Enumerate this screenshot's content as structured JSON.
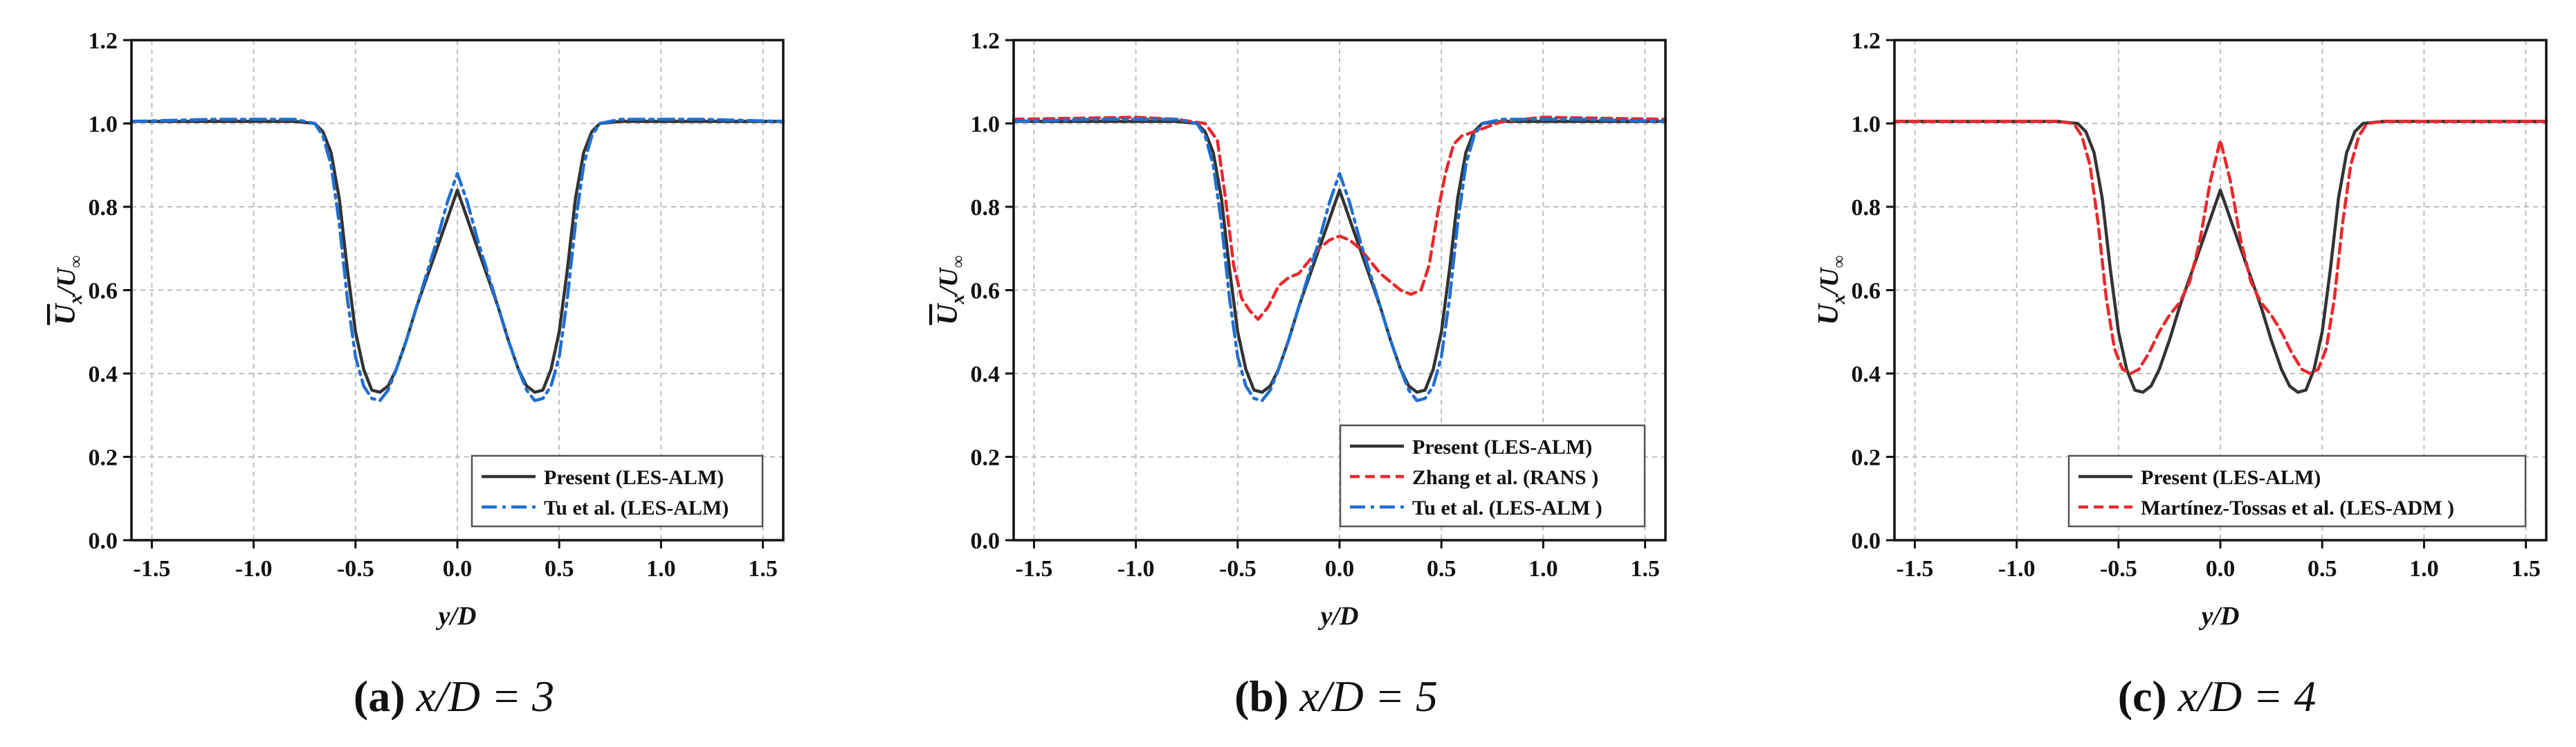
{
  "figure": {
    "panels": [
      {
        "caption": {
          "letter": "(a)",
          "text": " x/D = 3"
        },
        "chart_data": {
          "type": "line",
          "xlabel": "y/D",
          "ylabel": "U_x/U_∞",
          "ylabel_main": "U",
          "ylabel_sub": "x",
          "ylabel_den": "/U",
          "ylabel_den_sub": "∞",
          "ylabel_overline": true,
          "xlim": [
            -1.6,
            1.6
          ],
          "ylim": [
            0.0,
            1.2
          ],
          "xticks": [
            "-1.5",
            "-1.0",
            "-0.5",
            "0.0",
            "0.5",
            "1.0",
            "1.5"
          ],
          "yticks": [
            "0.0",
            "0.2",
            "0.4",
            "0.6",
            "0.8",
            "1.0",
            "1.2"
          ],
          "grid": true,
          "legend_position": "bottom-right",
          "series": [
            {
              "name": "Present (LES-ALM)",
              "color": "#333333",
              "style": "solid",
              "x": [
                -1.6,
                -0.8,
                -0.7,
                -0.66,
                -0.62,
                -0.58,
                -0.54,
                -0.5,
                -0.46,
                -0.42,
                -0.38,
                -0.34,
                -0.3,
                -0.25,
                -0.2,
                -0.15,
                -0.1,
                -0.05,
                0.0,
                0.05,
                0.1,
                0.15,
                0.2,
                0.25,
                0.3,
                0.34,
                0.38,
                0.42,
                0.46,
                0.5,
                0.54,
                0.58,
                0.62,
                0.66,
                0.7,
                0.8,
                1.6
              ],
              "y": [
                1.005,
                1.005,
                1.0,
                0.98,
                0.93,
                0.82,
                0.65,
                0.5,
                0.41,
                0.36,
                0.355,
                0.37,
                0.41,
                0.48,
                0.56,
                0.63,
                0.7,
                0.77,
                0.84,
                0.77,
                0.7,
                0.63,
                0.56,
                0.48,
                0.41,
                0.37,
                0.355,
                0.36,
                0.41,
                0.5,
                0.65,
                0.82,
                0.93,
                0.98,
                1.0,
                1.005,
                1.005
              ]
            },
            {
              "name": "Tu et al. (LES-ALM)",
              "color": "#1f6fd1",
              "style": "dashdot",
              "x": [
                -1.6,
                -1.2,
                -1.0,
                -0.8,
                -0.7,
                -0.66,
                -0.62,
                -0.58,
                -0.54,
                -0.5,
                -0.46,
                -0.42,
                -0.38,
                -0.34,
                -0.3,
                -0.25,
                -0.2,
                -0.15,
                -0.1,
                -0.05,
                0.0,
                0.05,
                0.1,
                0.15,
                0.2,
                0.25,
                0.3,
                0.34,
                0.38,
                0.42,
                0.46,
                0.5,
                0.54,
                0.58,
                0.62,
                0.66,
                0.7,
                0.8,
                1.0,
                1.2,
                1.6
              ],
              "y": [
                1.005,
                1.01,
                1.01,
                1.01,
                1.0,
                0.97,
                0.9,
                0.76,
                0.58,
                0.44,
                0.37,
                0.34,
                0.335,
                0.36,
                0.41,
                0.48,
                0.56,
                0.64,
                0.72,
                0.81,
                0.88,
                0.81,
                0.72,
                0.64,
                0.56,
                0.48,
                0.41,
                0.36,
                0.335,
                0.34,
                0.37,
                0.44,
                0.58,
                0.76,
                0.9,
                0.97,
                1.0,
                1.01,
                1.01,
                1.01,
                1.005
              ]
            }
          ]
        }
      },
      {
        "caption": {
          "letter": "(b)",
          "text": " x/D = 5"
        },
        "chart_data": {
          "type": "line",
          "xlabel": "y/D",
          "ylabel": "U_x/U_∞",
          "ylabel_main": "U",
          "ylabel_sub": "x",
          "ylabel_den": "/U",
          "ylabel_den_sub": "∞",
          "ylabel_overline": true,
          "xlim": [
            -1.6,
            1.6
          ],
          "ylim": [
            0.0,
            1.2
          ],
          "xticks": [
            "-1.5",
            "-1.0",
            "-0.5",
            "0.0",
            "0.5",
            "1.0",
            "1.5"
          ],
          "yticks": [
            "0.0",
            "0.2",
            "0.4",
            "0.6",
            "0.8",
            "1.0",
            "1.2"
          ],
          "grid": true,
          "legend_position": "bottom-right",
          "series": [
            {
              "name": "Present (LES-ALM)",
              "color": "#333333",
              "style": "solid",
              "x": [
                -1.6,
                -0.8,
                -0.7,
                -0.66,
                -0.62,
                -0.58,
                -0.54,
                -0.5,
                -0.46,
                -0.42,
                -0.38,
                -0.34,
                -0.3,
                -0.25,
                -0.2,
                -0.15,
                -0.1,
                -0.05,
                0.0,
                0.05,
                0.1,
                0.15,
                0.2,
                0.25,
                0.3,
                0.34,
                0.38,
                0.42,
                0.46,
                0.5,
                0.54,
                0.58,
                0.62,
                0.66,
                0.7,
                0.8,
                1.6
              ],
              "y": [
                1.005,
                1.005,
                1.0,
                0.98,
                0.93,
                0.82,
                0.65,
                0.5,
                0.41,
                0.36,
                0.355,
                0.37,
                0.41,
                0.48,
                0.56,
                0.63,
                0.7,
                0.77,
                0.84,
                0.77,
                0.7,
                0.63,
                0.56,
                0.48,
                0.41,
                0.37,
                0.355,
                0.36,
                0.41,
                0.5,
                0.65,
                0.82,
                0.93,
                0.98,
                1.0,
                1.005,
                1.005
              ]
            },
            {
              "name": "Zhang et al. (RANS )",
              "color": "#e8292d",
              "style": "dashed",
              "x": [
                -1.6,
                -1.0,
                -0.8,
                -0.66,
                -0.6,
                -0.56,
                -0.52,
                -0.48,
                -0.44,
                -0.4,
                -0.35,
                -0.3,
                -0.25,
                -0.2,
                -0.15,
                -0.1,
                -0.05,
                0.0,
                0.05,
                0.1,
                0.15,
                0.2,
                0.25,
                0.3,
                0.35,
                0.4,
                0.44,
                0.48,
                0.52,
                0.56,
                0.6,
                0.66,
                0.8,
                1.0,
                1.6
              ],
              "y": [
                1.01,
                1.015,
                1.01,
                1.0,
                0.96,
                0.82,
                0.66,
                0.58,
                0.55,
                0.53,
                0.56,
                0.61,
                0.63,
                0.64,
                0.67,
                0.7,
                0.72,
                0.73,
                0.72,
                0.7,
                0.67,
                0.64,
                0.62,
                0.6,
                0.59,
                0.6,
                0.66,
                0.78,
                0.88,
                0.95,
                0.97,
                0.98,
                1.005,
                1.015,
                1.01
              ]
            },
            {
              "name": "Tu et al. (LES-ALM )",
              "color": "#1f6fd1",
              "style": "dashdot",
              "x": [
                -1.6,
                -1.2,
                -1.0,
                -0.8,
                -0.7,
                -0.66,
                -0.62,
                -0.58,
                -0.54,
                -0.5,
                -0.46,
                -0.42,
                -0.38,
                -0.34,
                -0.3,
                -0.25,
                -0.2,
                -0.15,
                -0.1,
                -0.05,
                0.0,
                0.05,
                0.1,
                0.15,
                0.2,
                0.25,
                0.3,
                0.34,
                0.38,
                0.42,
                0.46,
                0.5,
                0.54,
                0.58,
                0.62,
                0.66,
                0.7,
                0.8,
                1.0,
                1.2,
                1.6
              ],
              "y": [
                1.005,
                1.01,
                1.01,
                1.01,
                1.0,
                0.97,
                0.9,
                0.76,
                0.58,
                0.44,
                0.37,
                0.34,
                0.335,
                0.36,
                0.41,
                0.48,
                0.56,
                0.64,
                0.72,
                0.81,
                0.88,
                0.81,
                0.72,
                0.64,
                0.56,
                0.48,
                0.41,
                0.36,
                0.335,
                0.34,
                0.37,
                0.44,
                0.58,
                0.76,
                0.9,
                0.97,
                1.0,
                1.01,
                1.01,
                1.01,
                1.005
              ]
            }
          ]
        }
      },
      {
        "caption": {
          "letter": "(c)",
          "text": " x/D = 4"
        },
        "chart_data": {
          "type": "line",
          "xlabel": "y/D",
          "ylabel": "U_x/U_∞",
          "ylabel_main": "U",
          "ylabel_sub": "x",
          "ylabel_den": "/U",
          "ylabel_den_sub": "∞",
          "ylabel_overline": false,
          "xlim": [
            -1.6,
            1.6
          ],
          "ylim": [
            0.0,
            1.2
          ],
          "xticks": [
            "-1.5",
            "-1.0",
            "-0.5",
            "0.0",
            "0.5",
            "1.0",
            "1.5"
          ],
          "yticks": [
            "0.0",
            "0.2",
            "0.4",
            "0.6",
            "0.8",
            "1.0",
            "1.2"
          ],
          "grid": true,
          "legend_position": "bottom-right",
          "series": [
            {
              "name": "Present (LES-ALM)",
              "color": "#333333",
              "style": "solid",
              "x": [
                -1.6,
                -0.8,
                -0.7,
                -0.66,
                -0.62,
                -0.58,
                -0.54,
                -0.5,
                -0.46,
                -0.42,
                -0.38,
                -0.34,
                -0.3,
                -0.25,
                -0.2,
                -0.15,
                -0.1,
                -0.05,
                0.0,
                0.05,
                0.1,
                0.15,
                0.2,
                0.25,
                0.3,
                0.34,
                0.38,
                0.42,
                0.46,
                0.5,
                0.54,
                0.58,
                0.62,
                0.66,
                0.7,
                0.8,
                1.6
              ],
              "y": [
                1.005,
                1.005,
                1.0,
                0.98,
                0.93,
                0.82,
                0.65,
                0.5,
                0.41,
                0.36,
                0.355,
                0.37,
                0.41,
                0.48,
                0.56,
                0.63,
                0.7,
                0.77,
                0.84,
                0.77,
                0.7,
                0.63,
                0.56,
                0.48,
                0.41,
                0.37,
                0.355,
                0.36,
                0.41,
                0.5,
                0.65,
                0.82,
                0.93,
                0.98,
                1.0,
                1.005,
                1.005
              ]
            },
            {
              "name": "Martínez-Tossas et al. (LES-ADM )",
              "color": "#e8292d",
              "style": "dashed",
              "x": [
                -1.6,
                -0.8,
                -0.72,
                -0.68,
                -0.64,
                -0.6,
                -0.56,
                -0.52,
                -0.48,
                -0.44,
                -0.4,
                -0.35,
                -0.3,
                -0.25,
                -0.2,
                -0.15,
                -0.1,
                -0.05,
                0.0,
                0.05,
                0.1,
                0.15,
                0.2,
                0.25,
                0.3,
                0.35,
                0.4,
                0.44,
                0.48,
                0.52,
                0.56,
                0.6,
                0.64,
                0.68,
                0.72,
                0.8,
                1.6
              ],
              "y": [
                1.005,
                1.005,
                1.0,
                0.97,
                0.9,
                0.76,
                0.58,
                0.46,
                0.41,
                0.4,
                0.41,
                0.45,
                0.5,
                0.54,
                0.57,
                0.62,
                0.72,
                0.86,
                0.96,
                0.86,
                0.72,
                0.62,
                0.57,
                0.54,
                0.5,
                0.45,
                0.41,
                0.4,
                0.41,
                0.46,
                0.58,
                0.76,
                0.9,
                0.97,
                1.0,
                1.005,
                1.005
              ]
            }
          ]
        }
      }
    ]
  }
}
